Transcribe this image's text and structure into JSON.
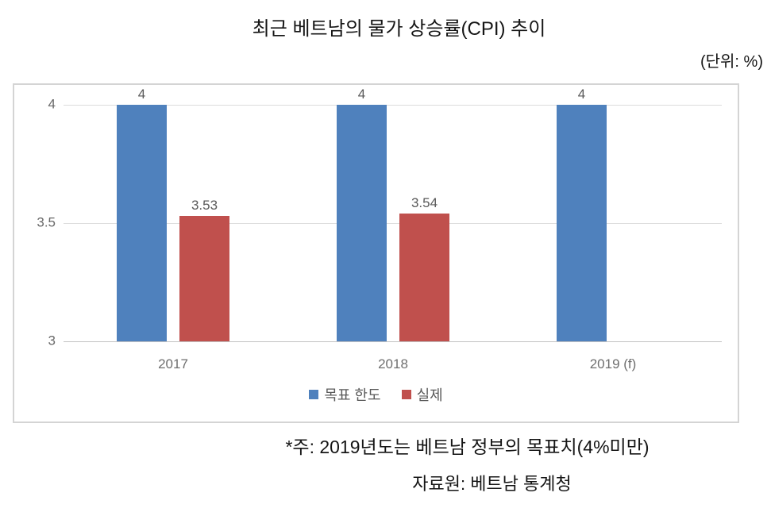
{
  "title": "최근 베트남의 물가 상승률(CPI) 추이",
  "unit_label": "(단위: %)",
  "footnote": "*주: 2019년도는 베트남 정부의 목표치(4%미만)",
  "source": "자료원: 베트남 통계청",
  "chart_data": {
    "type": "bar",
    "title": "최근 베트남의 물가 상승률(CPI) 추이",
    "unit": "%",
    "categories": [
      "2017",
      "2018",
      "2019 (f)"
    ],
    "series": [
      {
        "name": "목표 한도",
        "color": "#4f81bd",
        "values": [
          4,
          4,
          4
        ]
      },
      {
        "name": "실제",
        "color": "#c0504d",
        "values": [
          3.53,
          3.54,
          null
        ]
      }
    ],
    "ylim": [
      3,
      4
    ],
    "yticks": [
      3,
      3.5,
      4
    ],
    "grid": true,
    "legend_position": "bottom-inside",
    "data_labels": true
  },
  "colors": {
    "target": "#4f81bd",
    "actual": "#c0504d",
    "gridline": "#dcdcdc",
    "axis_text": "#696969",
    "data_label_text": "#595959",
    "chart_border": "#d4d4d4"
  }
}
